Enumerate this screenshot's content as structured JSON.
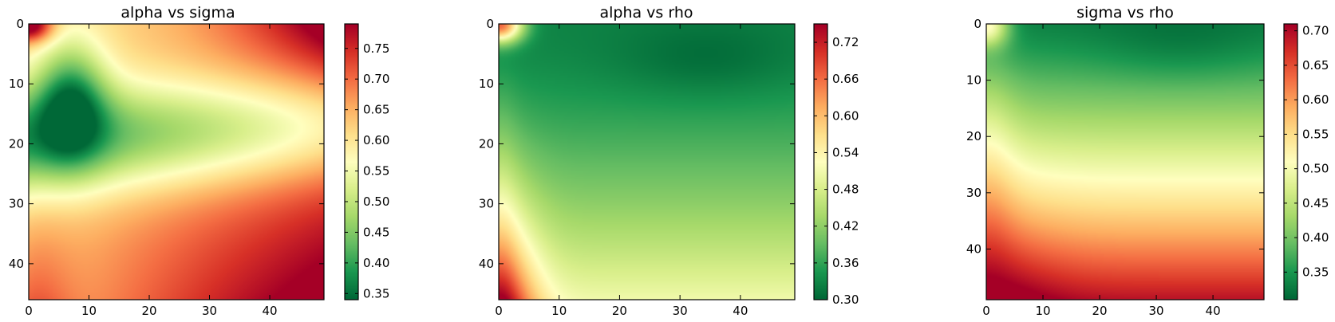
{
  "colormap": {
    "name": "RdYlGn_r",
    "stops": [
      "#006837",
      "#1a9850",
      "#66bd63",
      "#a6d96a",
      "#d9ef8b",
      "#ffffbf",
      "#fee08b",
      "#fdae61",
      "#f46d43",
      "#d73027",
      "#a50026"
    ]
  },
  "chart_data": [
    {
      "type": "heatmap",
      "title": "alpha vs sigma",
      "x_ticks": [
        "0",
        "10",
        "20",
        "30",
        "40"
      ],
      "y_ticks": [
        "0",
        "10",
        "20",
        "30",
        "40"
      ],
      "xlim": [
        0,
        49
      ],
      "ylim": [
        46,
        0
      ],
      "colorbar": {
        "ticks": [
          "0.35",
          "0.40",
          "0.45",
          "0.50",
          "0.55",
          "0.60",
          "0.65",
          "0.70",
          "0.75"
        ],
        "range": [
          0.34,
          0.79
        ]
      },
      "grid": false,
      "pattern": "green low region centered near x=6, y=12, widening toward the right into a pale band around y=18; red corners at top-left, top-right, bottom-right"
    },
    {
      "type": "heatmap",
      "title": "alpha vs rho",
      "x_ticks": [
        "0",
        "10",
        "20",
        "30",
        "40"
      ],
      "y_ticks": [
        "0",
        "10",
        "20",
        "30",
        "40"
      ],
      "xlim": [
        0,
        49
      ],
      "ylim": [
        46,
        0
      ],
      "colorbar": {
        "ticks": [
          "0.30",
          "0.36",
          "0.42",
          "0.48",
          "0.54",
          "0.60",
          "0.66",
          "0.72"
        ],
        "range": [
          0.3,
          0.75
        ]
      },
      "grid": false,
      "pattern": "dark green upper region (minimum near x=35, y=6) grading to pale yellow at the bottom; orange-red at top-left and bottom-left corners"
    },
    {
      "type": "heatmap",
      "title": "sigma vs rho",
      "x_ticks": [
        "0",
        "10",
        "20",
        "30",
        "40"
      ],
      "y_ticks": [
        "0",
        "10",
        "20",
        "30",
        "40"
      ],
      "xlim": [
        0,
        49
      ],
      "ylim": [
        49,
        0
      ],
      "colorbar": {
        "ticks": [
          "0.35",
          "0.40",
          "0.45",
          "0.50",
          "0.55",
          "0.60",
          "0.65",
          "0.70"
        ],
        "range": [
          0.31,
          0.71
        ]
      },
      "grid": false,
      "pattern": "dark green at the top right (minimum near x=35, y=4), pale yellow top-left corner, yellow band around y=28, red at the bottom with darkest red at bottom-left"
    }
  ]
}
